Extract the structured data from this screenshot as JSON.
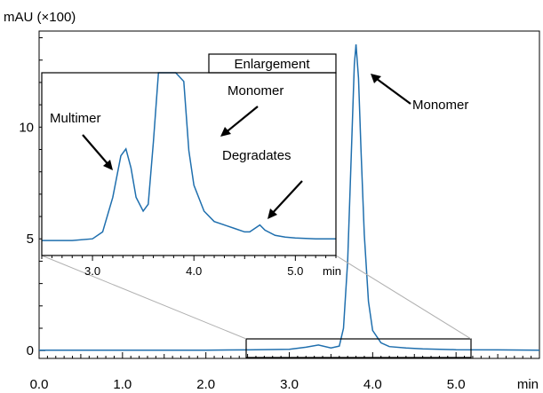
{
  "chart_data": [
    {
      "type": "line",
      "ylabel": "mAU (×100)",
      "xunit": "min",
      "xlim": [
        0.0,
        6.0
      ],
      "ylim": [
        -0.35,
        14.3
      ],
      "x_ticks": [
        0.0,
        1.0,
        2.0,
        3.0,
        4.0,
        5.0
      ],
      "x_tick_labels": [
        "0.0",
        "1.0",
        "2.0",
        "3.0",
        "4.0",
        "5.0"
      ],
      "y_ticks": [
        0,
        5,
        10
      ],
      "y_tick_labels": [
        "0",
        "5",
        "10"
      ],
      "line_color": "#1f6fae",
      "series": [
        {
          "x": [
            0.0,
            0.5,
            1.0,
            1.5,
            2.0,
            2.5,
            3.0,
            3.2,
            3.35,
            3.5,
            3.6,
            3.65,
            3.7,
            3.75,
            3.78,
            3.8,
            3.83,
            3.86,
            3.9,
            3.95,
            4.0,
            4.1,
            4.2,
            4.4,
            4.6,
            5.0,
            5.5,
            6.0
          ],
          "y": [
            0.02,
            0.02,
            0.02,
            0.02,
            0.02,
            0.03,
            0.06,
            0.15,
            0.25,
            0.12,
            0.2,
            1.0,
            4.0,
            9.5,
            12.8,
            13.7,
            12.2,
            9.0,
            5.2,
            2.2,
            0.9,
            0.35,
            0.18,
            0.12,
            0.08,
            0.04,
            0.03,
            0.02
          ]
        }
      ],
      "annotations": [
        {
          "text": "Monomer",
          "arrow_to": [
            3.82,
            12.6
          ]
        }
      ],
      "zoom_box": {
        "x": [
          2.47,
          5.17
        ],
        "y": [
          -0.3,
          0.6
        ],
        "label": "Enlargement"
      }
    },
    {
      "type": "line",
      "title": "Enlargement",
      "xunit": "min",
      "xlim": [
        2.5,
        5.4
      ],
      "ylim": [
        0.0,
        1.0
      ],
      "x_ticks": [
        3.0,
        4.0,
        5.0
      ],
      "x_tick_labels": [
        "3.0",
        "4.0",
        "5.0"
      ],
      "line_color": "#1f6fae",
      "series": [
        {
          "x": [
            2.5,
            2.8,
            3.0,
            3.1,
            3.2,
            3.28,
            3.33,
            3.38,
            3.43,
            3.5,
            3.55,
            3.6,
            3.65,
            3.7,
            3.75,
            3.82,
            3.9,
            3.95,
            4.0,
            4.1,
            4.2,
            4.3,
            4.4,
            4.5,
            4.55,
            4.6,
            4.65,
            4.7,
            4.8,
            4.9,
            5.0,
            5.2,
            5.4
          ],
          "y": [
            0.03,
            0.03,
            0.04,
            0.08,
            0.28,
            0.52,
            0.56,
            0.45,
            0.28,
            0.2,
            0.24,
            0.6,
            1.0,
            1.0,
            1.0,
            1.0,
            0.95,
            0.55,
            0.35,
            0.2,
            0.14,
            0.12,
            0.1,
            0.08,
            0.08,
            0.1,
            0.12,
            0.09,
            0.06,
            0.05,
            0.045,
            0.04,
            0.04
          ]
        }
      ],
      "annotations": [
        {
          "text": "Multimer",
          "arrow_to": [
            3.2,
            0.34
          ]
        },
        {
          "text": "Monomer",
          "arrow_to": [
            4.05,
            0.55
          ]
        },
        {
          "text": "Degradates",
          "arrow_to": [
            4.6,
            0.13
          ]
        }
      ]
    }
  ]
}
